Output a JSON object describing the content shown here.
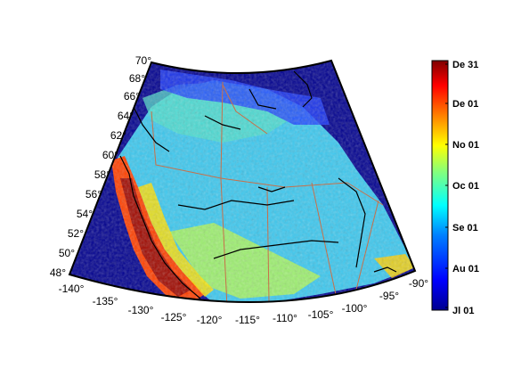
{
  "map": {
    "latitude_ticks": [
      "48°",
      "50°",
      "52°",
      "54°",
      "56°",
      "58°",
      "60°",
      "62°",
      "64°",
      "66°",
      "68°",
      "70°"
    ],
    "longitude_ticks": [
      "-140°",
      "-135°",
      "-130°",
      "-125°",
      "-120°",
      "-115°",
      "-110°",
      "-105°",
      "-100°",
      "-95°",
      "-90°"
    ],
    "colors": {
      "ocean": "#00008f",
      "land_interior": "#3cc8ef",
      "coastline": "#000000",
      "province_borders": "#c8704a"
    }
  },
  "colorbar": {
    "labels": [
      "De 31",
      "De 01",
      "No 01",
      "Oc 01",
      "Se 01",
      "Au 01",
      "Jl 01"
    ],
    "colormap": "jet",
    "colors": [
      "#7f0000",
      "#ff0000",
      "#ff8000",
      "#ffff00",
      "#80ff80",
      "#00ffff",
      "#0080ff",
      "#0000ff",
      "#00008f"
    ]
  }
}
